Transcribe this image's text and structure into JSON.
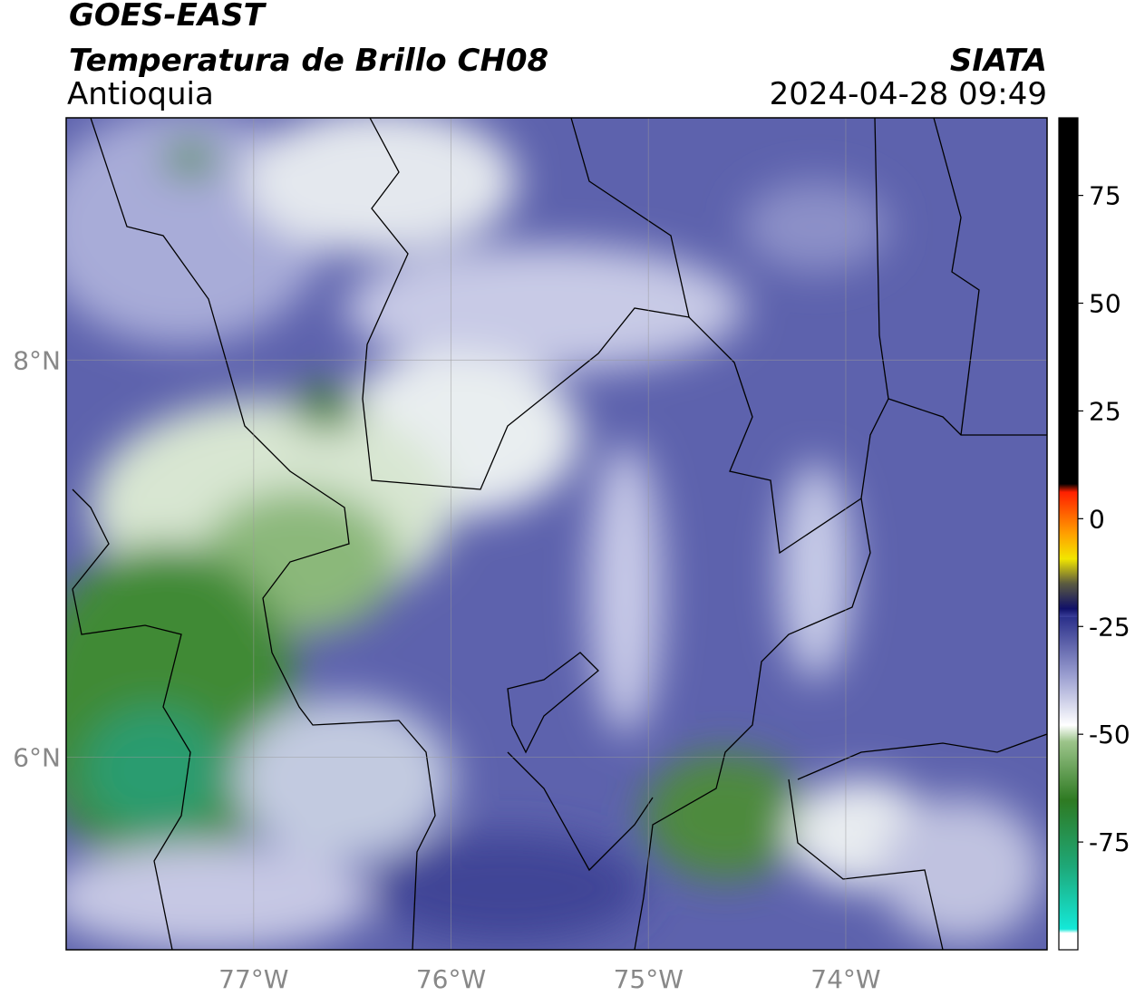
{
  "header": {
    "source": "GOES-EAST",
    "title": "Temperatura de Brillo CH08",
    "region": "Antioquia",
    "agency": "SIATA",
    "datetime": "2024-04-28 09:49"
  },
  "map": {
    "xlim": [
      -77.95,
      -72.98
    ],
    "ylim": [
      5.03,
      9.22
    ],
    "grid": true,
    "xticks": [
      {
        "value": -77,
        "label": "77°W"
      },
      {
        "value": -76,
        "label": "76°W"
      },
      {
        "value": -75,
        "label": "75°W"
      },
      {
        "value": -74,
        "label": "74°W"
      }
    ],
    "yticks": [
      {
        "value": 6,
        "label": "6°N"
      },
      {
        "value": 8,
        "label": "8°N"
      }
    ]
  },
  "colorbar": {
    "clim": [
      -100,
      93
    ],
    "ticks": [
      75,
      50,
      25,
      0,
      -25,
      -50,
      -75
    ]
  }
}
